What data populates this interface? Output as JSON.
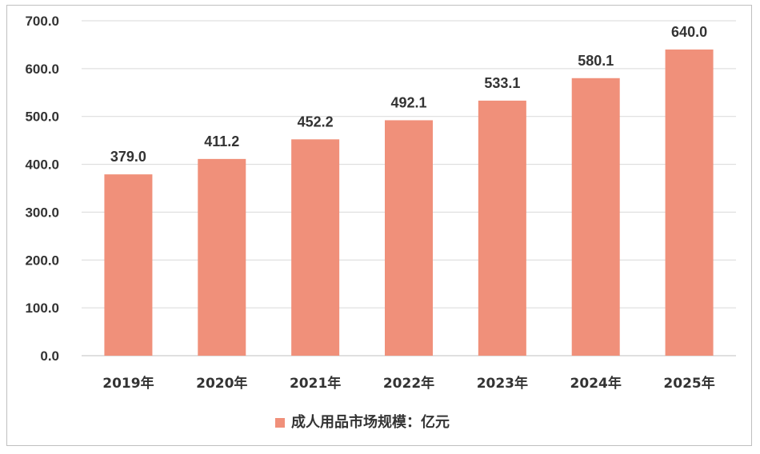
{
  "chart_data": {
    "type": "bar",
    "categories": [
      "2019年",
      "2020年",
      "2021年",
      "2022年",
      "2023年",
      "2024年",
      "2025年"
    ],
    "series": [
      {
        "name": "成人用品市场规模：亿元",
        "values": [
          379.0,
          411.2,
          452.2,
          492.1,
          533.1,
          580.1,
          640.0
        ],
        "labels": [
          "379.0",
          "411.2",
          "452.2",
          "492.1",
          "533.1",
          "580.1",
          "640.0"
        ],
        "color": "#f0907a"
      }
    ],
    "yticks": [
      "0.0",
      "100.0",
      "200.0",
      "300.0",
      "400.0",
      "500.0",
      "600.0",
      "700.0"
    ],
    "ylim": [
      0,
      700
    ],
    "grid": true,
    "legend_position": "bottom",
    "gridline_color": "#d9d9d9"
  }
}
